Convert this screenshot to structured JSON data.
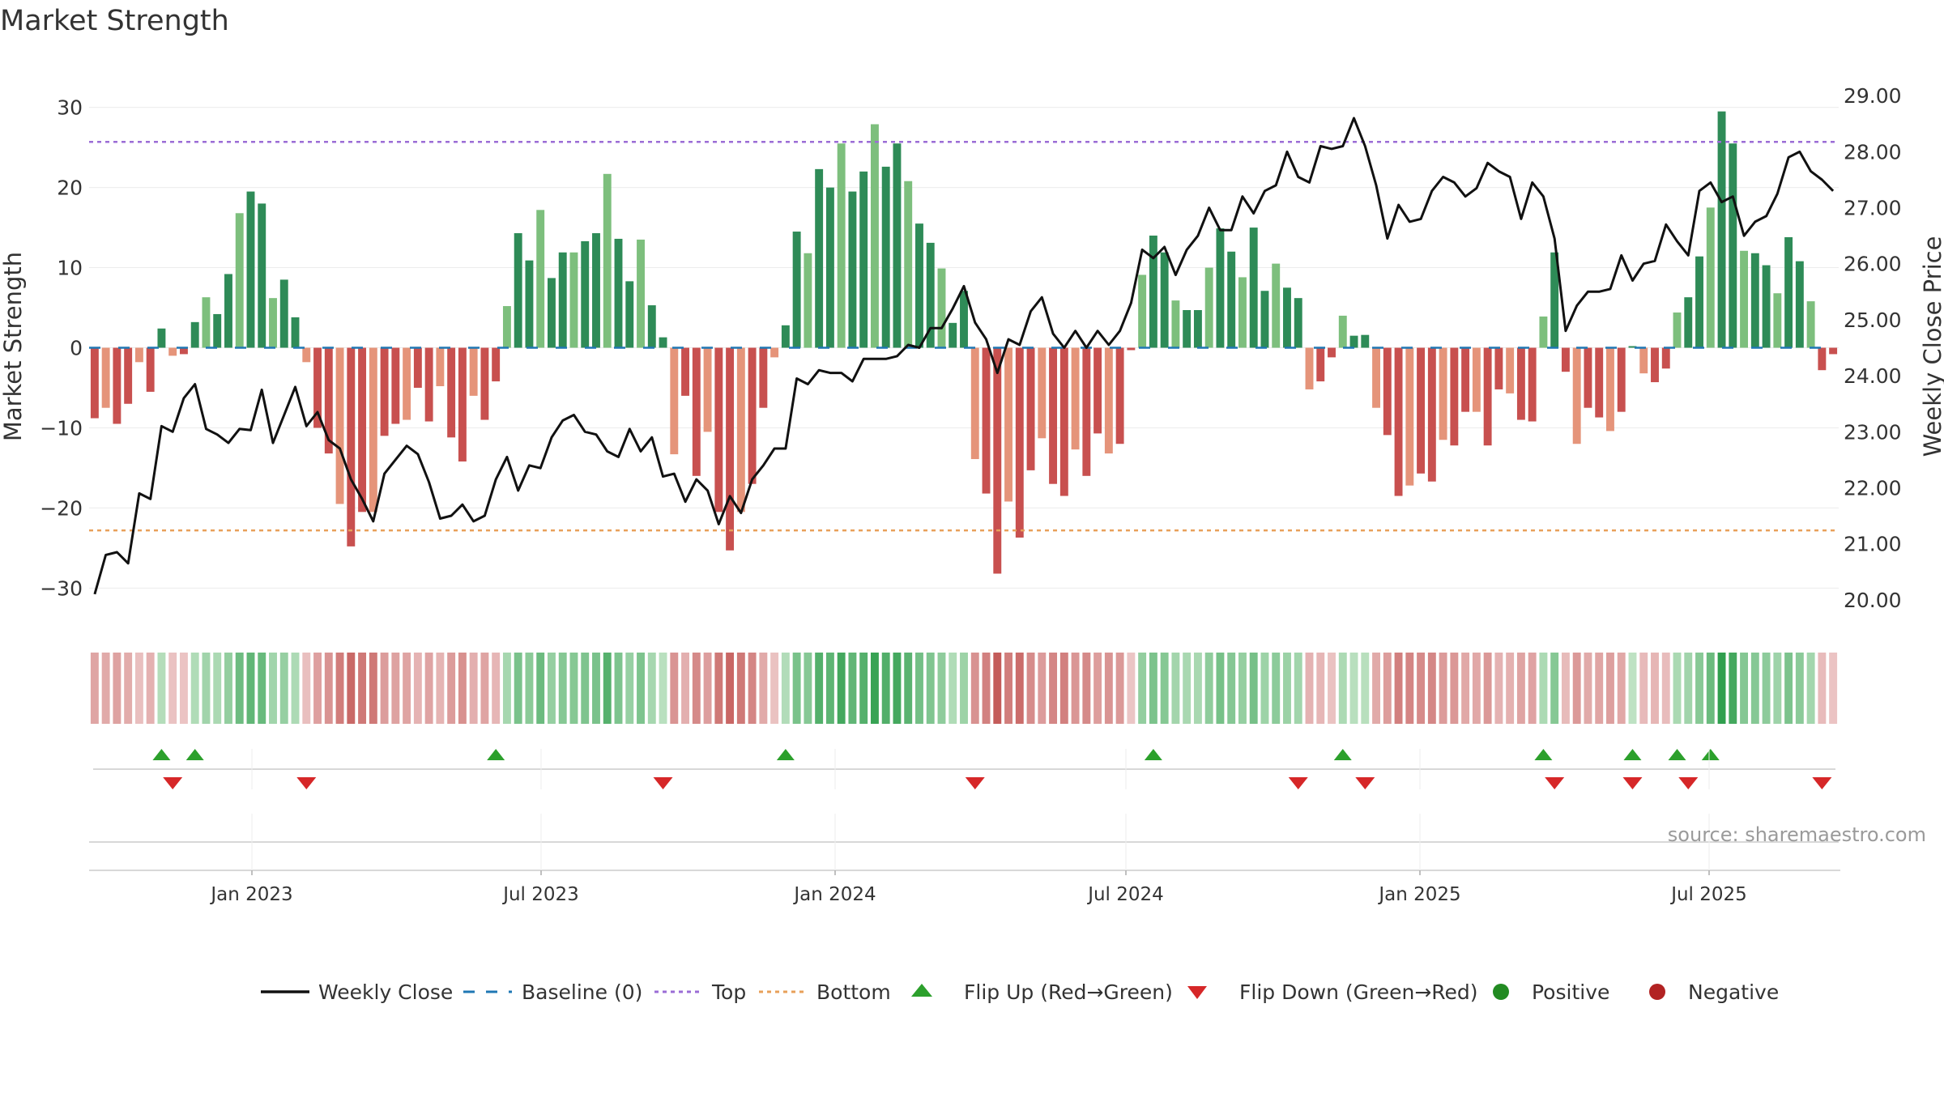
{
  "title": "Market Strength",
  "source": "source: sharemaestro.com",
  "chart_data": {
    "type": "bar+line",
    "title": "Market Strength",
    "y_left": {
      "label": "Market Strength",
      "ticks": [
        "30",
        "20",
        "10",
        "0",
        "−10",
        "−20",
        "−30"
      ],
      "range": [
        -33,
        33
      ]
    },
    "y_right": {
      "label": "Weekly Close Price",
      "ticks": [
        "29.00",
        "28.00",
        "27.00",
        "26.00",
        "25.00",
        "24.00",
        "23.00",
        "22.00",
        "21.00",
        "20.00"
      ],
      "range": [
        19.78,
        29.22
      ]
    },
    "x_ticks": [
      "Jan 2023",
      "Jul 2023",
      "Jan 2024",
      "Jul 2024",
      "Jan 2025",
      "Jul 2025"
    ],
    "top_line": 25.7,
    "bottom_line": -22.8,
    "strength": [
      -8.8,
      -7.5,
      -9.5,
      -7,
      -1.8,
      -5.5,
      2.4,
      -1,
      -0.8,
      3.2,
      6.3,
      4.2,
      9.2,
      16.8,
      19.5,
      18,
      6.2,
      8.5,
      3.8,
      -1.8,
      -10,
      -13.2,
      -19.5,
      -24.8,
      -20.5,
      -20.5,
      -11,
      -9.5,
      -9,
      -5,
      -9.2,
      -4.8,
      -11.2,
      -14.2,
      -6,
      -9,
      -4.2,
      5.2,
      14.3,
      10.9,
      17.2,
      8.7,
      11.9,
      11.9,
      13.3,
      14.3,
      21.7,
      13.6,
      8.3,
      13.5,
      5.3,
      1.3,
      -13.3,
      -6,
      -16,
      -10.5,
      -20.5,
      -25.3,
      -20.5,
      -17,
      -7.5,
      -1.2,
      2.8,
      14.5,
      11.8,
      22.3,
      20,
      25.5,
      19.5,
      22,
      27.9,
      22.6,
      25.5,
      20.8,
      15.5,
      13.1,
      9.9,
      3.1,
      7.1,
      -13.9,
      -18.2,
      -28.2,
      -19.2,
      -23.7,
      -15.3,
      -11.3,
      -17,
      -18.5,
      -12.7,
      -16,
      -10.7,
      -13.2,
      -12,
      -0.3,
      9.1,
      14,
      11.9,
      5.9,
      4.7,
      4.7,
      10,
      14.9,
      12,
      8.8,
      15,
      7.1,
      10.5,
      7.5,
      6.2,
      -5.2,
      -4.2,
      -1.2,
      4,
      1.5,
      1.6,
      -7.5,
      -10.9,
      -18.5,
      -17.2,
      -15.7,
      -16.7,
      -11.5,
      -12.2,
      -8,
      -8,
      -12.2,
      -5.2,
      -5.7,
      -9,
      -9.2,
      3.9,
      11.9,
      -3,
      -12,
      -7.5,
      -8.7,
      -10.4,
      -8,
      0.2,
      -3.2,
      -4.3,
      -2.6,
      4.4,
      6.3,
      11.4,
      17.5,
      29.5,
      25.5,
      12.1,
      11.8,
      10.3,
      6.8,
      13.8,
      10.8,
      5.8,
      -2.8,
      -0.8
    ],
    "weekly_close": [
      20.1,
      20.8,
      20.85,
      20.65,
      21.9,
      21.8,
      23.1,
      23,
      23.6,
      23.85,
      23.05,
      22.95,
      22.8,
      23.05,
      23.03,
      23.75,
      22.8,
      23.3,
      23.8,
      23.1,
      23.35,
      22.85,
      22.7,
      22.15,
      21.8,
      21.4,
      22.25,
      22.5,
      22.75,
      22.6,
      22.1,
      21.45,
      21.5,
      21.7,
      21.4,
      21.5,
      22.15,
      22.55,
      21.95,
      22.4,
      22.35,
      22.9,
      23.2,
      23.3,
      23,
      22.95,
      22.65,
      22.55,
      23.05,
      22.65,
      22.9,
      22.2,
      22.25,
      21.75,
      22.15,
      21.95,
      21.35,
      21.85,
      21.55,
      22.15,
      22.4,
      22.7,
      22.7,
      23.95,
      23.85,
      24.1,
      24.05,
      24.05,
      23.9,
      24.3,
      24.3,
      24.3,
      24.35,
      24.55,
      24.5,
      24.85,
      24.85,
      25.2,
      25.6,
      24.95,
      24.65,
      24.05,
      24.65,
      24.55,
      25.15,
      25.4,
      24.75,
      24.5,
      24.8,
      24.5,
      24.8,
      24.55,
      24.8,
      25.3,
      26.25,
      26.1,
      26.3,
      25.8,
      26.25,
      26.5,
      27,
      26.6,
      26.6,
      27.2,
      26.9,
      27.3,
      27.4,
      28,
      27.55,
      27.45,
      28.1,
      28.05,
      28.1,
      28.6,
      28.1,
      27.4,
      26.45,
      27.05,
      26.75,
      26.8,
      27.3,
      27.55,
      27.45,
      27.2,
      27.35,
      27.8,
      27.65,
      27.55,
      26.8,
      27.45,
      27.2,
      26.45,
      24.8,
      25.25,
      25.5,
      25.5,
      25.55,
      26.15,
      25.7,
      26,
      26.05,
      26.7,
      26.4,
      26.15,
      27.3,
      27.45,
      27.1,
      27.2,
      26.5,
      26.75,
      26.85,
      27.25,
      27.9,
      28,
      27.65,
      27.5,
      27.3
    ],
    "positive_color": "#2e8b57",
    "negative_color": "#c8504f",
    "top_color": "#9b6dd6",
    "bottom_color": "#e8a05a",
    "line_color": "#111111",
    "flip_up": [
      6,
      9,
      36,
      62,
      95,
      112,
      130,
      138,
      142,
      145
    ],
    "flip_down": [
      7,
      19,
      51,
      79,
      108,
      114,
      131,
      138,
      143,
      155
    ],
    "legend": [
      {
        "label": "Weekly Close",
        "kind": "line",
        "color": "#111111"
      },
      {
        "label": "Baseline (0)",
        "kind": "dash",
        "color": "#1f77b4"
      },
      {
        "label": "Top",
        "kind": "dot",
        "color": "#9b6dd6"
      },
      {
        "label": "Bottom",
        "kind": "dot",
        "color": "#e8a05a"
      },
      {
        "label": "Flip Up (Red→Green)",
        "kind": "tri-up",
        "color": "#2ca02c"
      },
      {
        "label": "Flip Down (Green→Red)",
        "kind": "tri-down",
        "color": "#d62728"
      },
      {
        "label": "Positive",
        "kind": "circle",
        "color": "#228b22"
      },
      {
        "label": "Negative",
        "kind": "circle",
        "color": "#b22222"
      }
    ]
  }
}
